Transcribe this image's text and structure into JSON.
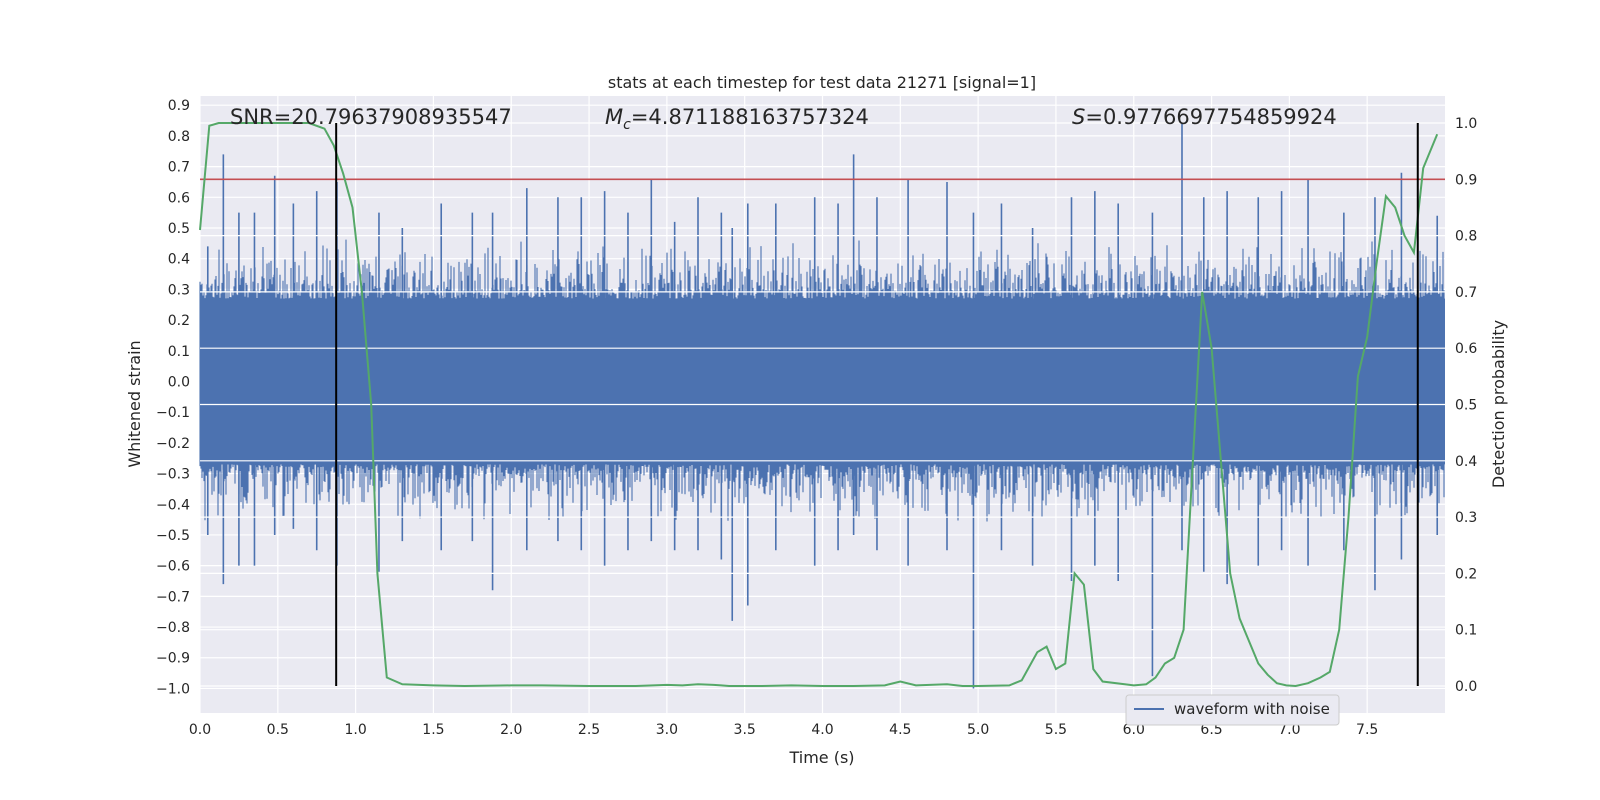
{
  "chart_data": {
    "type": "line",
    "title": "stats at each timestep for test data 21271 [signal=1]",
    "xlabel": "Time (s)",
    "ylabel": "Whitened strain",
    "y2label": "Detection probability",
    "xlim": [
      0.0,
      8.0
    ],
    "ylim": [
      -1.08,
      0.93
    ],
    "y2lim": [
      -0.048,
      1.048
    ],
    "xticks": [
      0.0,
      0.5,
      1.0,
      1.5,
      2.0,
      2.5,
      3.0,
      3.5,
      4.0,
      4.5,
      5.0,
      5.5,
      6.0,
      6.5,
      7.0,
      7.5
    ],
    "xtick_labels": [
      "0.0",
      "0.5",
      "1.0",
      "1.5",
      "2.0",
      "2.5",
      "3.0",
      "3.5",
      "4.0",
      "4.5",
      "5.0",
      "5.5",
      "6.0",
      "6.5",
      "7.0",
      "7.5"
    ],
    "yticks": [
      0.9,
      0.8,
      0.7,
      0.6,
      0.5,
      0.4,
      0.3,
      0.2,
      0.1,
      0.0,
      -0.1,
      -0.2,
      -0.3,
      -0.4,
      -0.5,
      -0.6,
      -0.7,
      -0.8,
      -0.9,
      -1.0
    ],
    "ytick_labels": [
      "0.9",
      "0.8",
      "0.7",
      "0.6",
      "0.5",
      "0.4",
      "0.3",
      "0.2",
      "0.1",
      "0.0",
      "−0.1",
      "−0.2",
      "−0.3",
      "−0.4",
      "−0.5",
      "−0.6",
      "−0.7",
      "−0.8",
      "−0.9",
      "−1.0"
    ],
    "y2ticks": [
      1.0,
      0.9,
      0.8,
      0.7,
      0.6,
      0.5,
      0.4,
      0.3,
      0.2,
      0.1,
      0.0
    ],
    "y2tick_labels": [
      "1.0",
      "0.9",
      "0.8",
      "0.7",
      "0.6",
      "0.5",
      "0.4",
      "0.3",
      "0.2",
      "0.1",
      "0.0"
    ],
    "annotations": {
      "snr": "SNR=20.79637908935547",
      "mc_symbol": "M",
      "mc_sub": "c",
      "mc_value": "=4.871188163757324",
      "s_symbol": "S",
      "s_value": "=0.9776697754859924"
    },
    "threshold_y2": 0.9,
    "vlines_x": [
      0.875,
      7.825
    ],
    "legend": {
      "label": "waveform with noise",
      "position": "lower-right"
    },
    "series": [
      {
        "name": "waveform with noise",
        "color": "#4c72b0",
        "note": "dense noisy strain, bulk about ±0.27 with spikes",
        "spikes": [
          [
            0.05,
            0.44,
            -0.5
          ],
          [
            0.15,
            0.74,
            -0.66
          ],
          [
            0.25,
            0.55,
            -0.6
          ],
          [
            0.35,
            0.55,
            -0.6
          ],
          [
            0.48,
            0.67,
            -0.5
          ],
          [
            0.6,
            0.58,
            -0.48
          ],
          [
            0.75,
            0.62,
            -0.55
          ],
          [
            0.88,
            0.65,
            -0.6
          ],
          [
            1.15,
            0.55,
            -0.62
          ],
          [
            1.3,
            0.5,
            -0.52
          ],
          [
            1.55,
            0.58,
            -0.55
          ],
          [
            1.75,
            0.55,
            -0.52
          ],
          [
            1.88,
            0.55,
            -0.68
          ],
          [
            2.1,
            0.63,
            -0.55
          ],
          [
            2.3,
            0.6,
            -0.52
          ],
          [
            2.45,
            0.6,
            -0.55
          ],
          [
            2.6,
            0.62,
            -0.6
          ],
          [
            2.75,
            0.55,
            -0.55
          ],
          [
            2.9,
            0.66,
            -0.52
          ],
          [
            3.05,
            0.52,
            -0.55
          ],
          [
            3.2,
            0.6,
            -0.55
          ],
          [
            3.35,
            0.55,
            -0.58
          ],
          [
            3.42,
            0.5,
            -0.78
          ],
          [
            3.52,
            0.58,
            -0.73
          ],
          [
            3.7,
            0.58,
            -0.55
          ],
          [
            3.95,
            0.6,
            -0.6
          ],
          [
            4.1,
            0.58,
            -0.55
          ],
          [
            4.2,
            0.74,
            -0.5
          ],
          [
            4.35,
            0.6,
            -0.55
          ],
          [
            4.55,
            0.66,
            -0.6
          ],
          [
            4.8,
            0.65,
            -0.55
          ],
          [
            4.97,
            0.55,
            -1.0
          ],
          [
            5.15,
            0.58,
            -0.55
          ],
          [
            5.35,
            0.5,
            -0.6
          ],
          [
            5.6,
            0.6,
            -0.65
          ],
          [
            5.75,
            0.62,
            -0.6
          ],
          [
            5.9,
            0.58,
            -0.65
          ],
          [
            6.12,
            0.55,
            -0.96
          ],
          [
            6.31,
            0.84,
            -0.55
          ],
          [
            6.45,
            0.6,
            -0.62
          ],
          [
            6.6,
            0.62,
            -0.66
          ],
          [
            6.8,
            0.6,
            -0.6
          ],
          [
            6.95,
            0.62,
            -0.55
          ],
          [
            7.12,
            0.66,
            -0.6
          ],
          [
            7.35,
            0.55,
            -0.55
          ],
          [
            7.55,
            0.6,
            -0.68
          ],
          [
            7.72,
            0.68,
            -0.58
          ],
          [
            7.95,
            0.54,
            -0.5
          ]
        ]
      },
      {
        "name": "detection probability",
        "axis": "right",
        "color": "#55a868",
        "x": [
          0.0,
          0.06,
          0.12,
          0.2,
          0.3,
          0.4,
          0.5,
          0.6,
          0.7,
          0.8,
          0.86,
          0.92,
          0.98,
          1.04,
          1.1,
          1.14,
          1.2,
          1.3,
          1.5,
          1.7,
          2.0,
          2.2,
          2.5,
          2.8,
          3.0,
          3.1,
          3.2,
          3.3,
          3.35,
          3.4,
          3.6,
          3.8,
          4.0,
          4.2,
          4.4,
          4.5,
          4.6,
          4.8,
          4.9,
          5.0,
          5.2,
          5.28,
          5.32,
          5.38,
          5.44,
          5.5,
          5.56,
          5.62,
          5.68,
          5.74,
          5.8,
          6.0,
          6.08,
          6.14,
          6.2,
          6.26,
          6.32,
          6.38,
          6.44,
          6.5,
          6.56,
          6.62,
          6.68,
          6.74,
          6.8,
          6.86,
          6.92,
          6.98,
          7.04,
          7.12,
          7.2,
          7.26,
          7.32,
          7.38,
          7.44,
          7.5,
          7.56,
          7.62,
          7.68,
          7.74,
          7.8,
          7.86,
          7.95
        ],
        "values": [
          0.81,
          0.995,
          1.0,
          1.0,
          1.0,
          1.0,
          1.0,
          1.0,
          1.0,
          0.99,
          0.96,
          0.91,
          0.85,
          0.7,
          0.5,
          0.2,
          0.015,
          0.003,
          0.001,
          0.0,
          0.001,
          0.001,
          0.0,
          0.0,
          0.002,
          0.001,
          0.003,
          0.002,
          0.001,
          0.0,
          0.0,
          0.001,
          0.0,
          0.0,
          0.001,
          0.008,
          0.001,
          0.003,
          0.0,
          0.0,
          0.001,
          0.01,
          0.03,
          0.06,
          0.07,
          0.03,
          0.04,
          0.2,
          0.18,
          0.03,
          0.008,
          0.001,
          0.003,
          0.015,
          0.04,
          0.05,
          0.1,
          0.4,
          0.7,
          0.6,
          0.4,
          0.2,
          0.12,
          0.08,
          0.04,
          0.02,
          0.005,
          0.001,
          0.0,
          0.005,
          0.015,
          0.025,
          0.1,
          0.3,
          0.55,
          0.62,
          0.75,
          0.87,
          0.85,
          0.8,
          0.77,
          0.92,
          0.98
        ]
      }
    ]
  }
}
